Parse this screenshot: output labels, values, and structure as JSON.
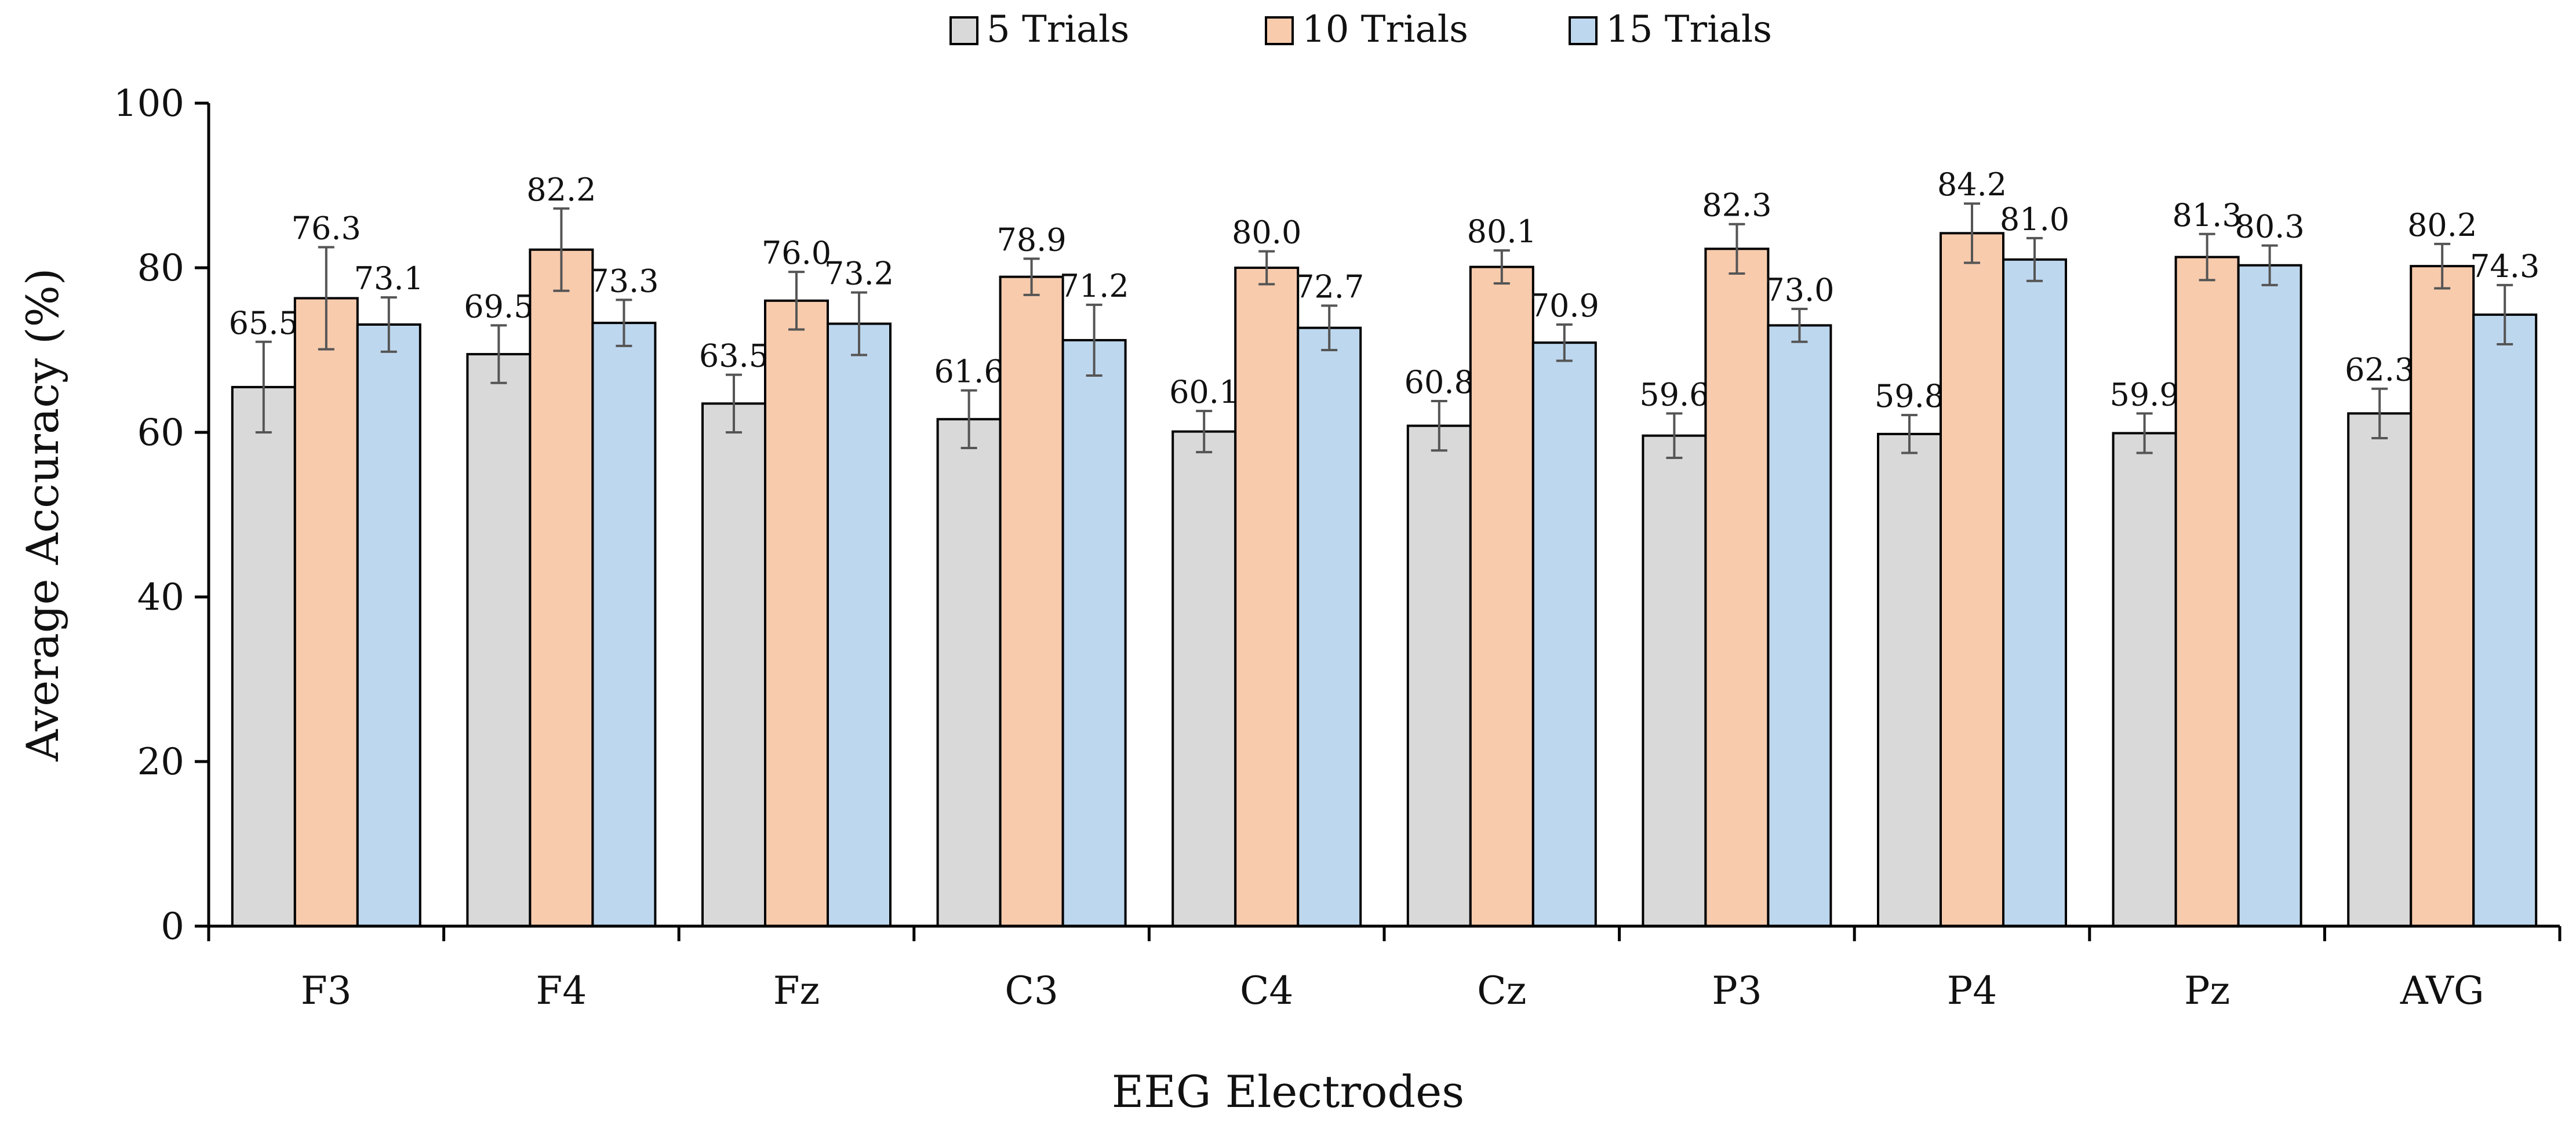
{
  "chart_data": {
    "type": "bar",
    "title": "",
    "xlabel": "EEG Electrodes",
    "ylabel": "Average Accuracy (%)",
    "ylim": [
      0,
      100
    ],
    "yticks": [
      0,
      20,
      40,
      60,
      80,
      100
    ],
    "grid": false,
    "legend_position": "top-center",
    "categories": [
      "F3",
      "F4",
      "Fz",
      "C3",
      "C4",
      "Cz",
      "P3",
      "P4",
      "Pz",
      "AVG"
    ],
    "series": [
      {
        "name": "5 Trials",
        "color": "#d9d9d9",
        "values": [
          65.5,
          69.5,
          63.5,
          61.6,
          60.1,
          60.8,
          59.6,
          59.8,
          59.9,
          62.3
        ],
        "labels": [
          "65.5",
          "69.5",
          "63.5",
          "61.6",
          "60.1",
          "60.8",
          "59.6",
          "59.8",
          "59.9",
          "62.3"
        ],
        "errors": [
          5.5,
          3.5,
          3.5,
          3.5,
          2.5,
          3.0,
          2.7,
          2.3,
          2.4,
          3.0
        ]
      },
      {
        "name": "10 Trials",
        "color": "#f8cbad",
        "values": [
          76.3,
          82.2,
          76.0,
          78.9,
          80.0,
          80.1,
          82.3,
          84.2,
          81.3,
          80.2
        ],
        "labels": [
          "76.3",
          "82.2",
          "76.0",
          "78.9",
          "80.0",
          "80.1",
          "82.3",
          "84.2",
          "81.3",
          "80.2"
        ],
        "errors": [
          6.2,
          5.0,
          3.5,
          2.2,
          2.0,
          2.0,
          3.0,
          3.6,
          2.8,
          2.7
        ]
      },
      {
        "name": "15 Trials",
        "color": "#bdd7ee",
        "values": [
          73.1,
          73.3,
          73.2,
          71.2,
          72.7,
          70.9,
          73.0,
          81.0,
          80.3,
          74.3
        ],
        "labels": [
          "73.1",
          "73.3",
          "73.2",
          "71.2",
          "72.7",
          "70.9",
          "73.0",
          "81.0",
          "80.3",
          "74.3"
        ],
        "errors": [
          3.3,
          2.8,
          3.8,
          4.3,
          2.7,
          2.2,
          2.0,
          2.6,
          2.4,
          3.6
        ]
      }
    ]
  }
}
